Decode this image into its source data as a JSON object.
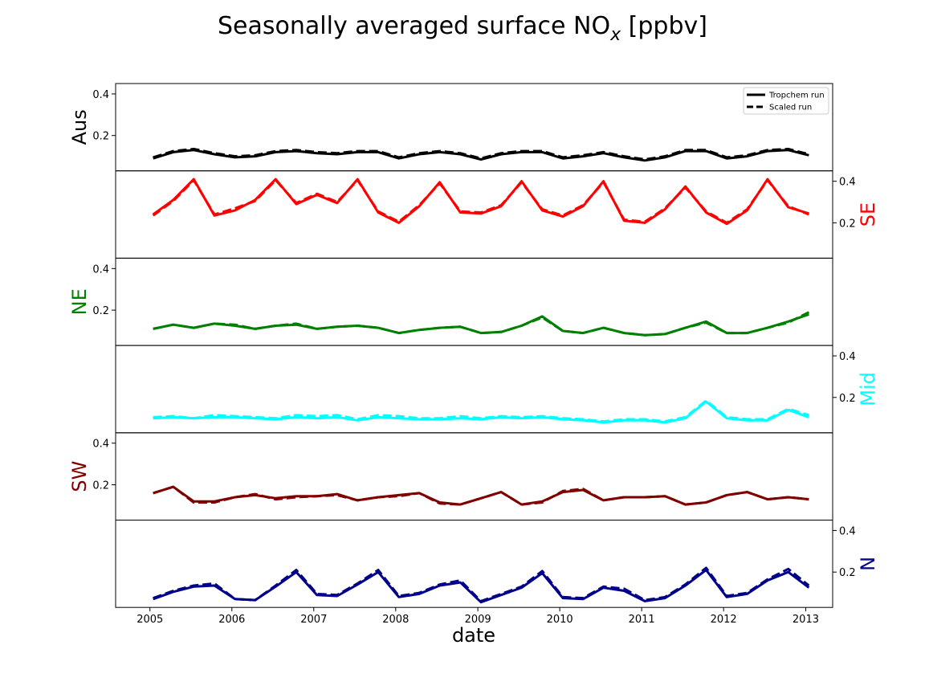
{
  "chart_data": {
    "type": "line",
    "title": "Seasonally averaged surface NO",
    "title_subscript": "x",
    "title_suffix": " [ppbv]",
    "xlabel": "date",
    "x": [
      "2005-01-15",
      "2005-04-15",
      "2005-07-15",
      "2005-10-15",
      "2006-01-15",
      "2006-04-15",
      "2006-07-15",
      "2006-10-15",
      "2007-01-15",
      "2007-04-15",
      "2007-07-15",
      "2007-10-15",
      "2008-01-15",
      "2008-04-15",
      "2008-07-15",
      "2008-10-15",
      "2009-01-15",
      "2009-04-15",
      "2009-07-15",
      "2009-10-15",
      "2010-01-15",
      "2010-04-15",
      "2010-07-15",
      "2010-10-15",
      "2011-01-15",
      "2011-04-15",
      "2011-07-15",
      "2011-10-15",
      "2012-01-15",
      "2012-04-15",
      "2012-07-15",
      "2012-10-15",
      "2013-01-15"
    ],
    "xticks": [
      "2005",
      "2006",
      "2007",
      "2008",
      "2009",
      "2010",
      "2011",
      "2012",
      "2013"
    ],
    "yticks": [
      "0.2",
      "0.4"
    ],
    "ylim": [
      0.03,
      0.45
    ],
    "grid": false,
    "legend": {
      "position": "top-right",
      "entries": [
        "Tropchem run",
        "Scaled run"
      ]
    },
    "panels": [
      {
        "label": "Aus",
        "color": "#000000",
        "axis_side": "left",
        "series": [
          {
            "name": "Tropchem run",
            "style": "solid",
            "values": [
              0.09,
              0.12,
              0.13,
              0.11,
              0.095,
              0.1,
              0.12,
              0.125,
              0.115,
              0.11,
              0.12,
              0.12,
              0.09,
              0.11,
              0.12,
              0.11,
              0.085,
              0.11,
              0.12,
              0.12,
              0.09,
              0.1,
              0.115,
              0.095,
              0.08,
              0.095,
              0.125,
              0.125,
              0.09,
              0.1,
              0.125,
              0.13,
              0.105
            ]
          },
          {
            "name": "Scaled run",
            "style": "dashed",
            "values": [
              0.095,
              0.125,
              0.135,
              0.115,
              0.1,
              0.105,
              0.125,
              0.13,
              0.12,
              0.115,
              0.125,
              0.125,
              0.095,
              0.115,
              0.125,
              0.115,
              0.09,
              0.115,
              0.125,
              0.125,
              0.095,
              0.105,
              0.12,
              0.1,
              0.085,
              0.1,
              0.13,
              0.13,
              0.095,
              0.105,
              0.13,
              0.135,
              0.11
            ]
          }
        ]
      },
      {
        "label": "SE",
        "color": "#ff0000",
        "axis_side": "right",
        "series": [
          {
            "name": "Tropchem run",
            "style": "solid",
            "values": [
              0.24,
              0.31,
              0.41,
              0.235,
              0.26,
              0.31,
              0.41,
              0.29,
              0.335,
              0.295,
              0.41,
              0.25,
              0.2,
              0.28,
              0.395,
              0.25,
              0.245,
              0.28,
              0.4,
              0.26,
              0.23,
              0.28,
              0.4,
              0.21,
              0.2,
              0.265,
              0.375,
              0.25,
              0.195,
              0.26,
              0.41,
              0.275,
              0.245
            ]
          },
          {
            "name": "Scaled run",
            "style": "dashed",
            "values": [
              0.235,
              0.305,
              0.405,
              0.24,
              0.27,
              0.305,
              0.405,
              0.295,
              0.34,
              0.3,
              0.405,
              0.255,
              0.205,
              0.285,
              0.39,
              0.255,
              0.25,
              0.285,
              0.395,
              0.265,
              0.235,
              0.285,
              0.395,
              0.215,
              0.205,
              0.27,
              0.37,
              0.255,
              0.2,
              0.265,
              0.405,
              0.28,
              0.24
            ]
          }
        ]
      },
      {
        "label": "NE",
        "color": "#008000",
        "axis_side": "left",
        "series": [
          {
            "name": "Tropchem run",
            "style": "solid",
            "values": [
              0.11,
              0.13,
              0.115,
              0.135,
              0.125,
              0.11,
              0.125,
              0.13,
              0.11,
              0.12,
              0.125,
              0.115,
              0.09,
              0.105,
              0.115,
              0.12,
              0.09,
              0.095,
              0.125,
              0.17,
              0.1,
              0.09,
              0.115,
              0.09,
              0.08,
              0.085,
              0.115,
              0.145,
              0.09,
              0.09,
              0.115,
              0.145,
              0.18
            ]
          },
          {
            "name": "Scaled run",
            "style": "dashed",
            "values": [
              0.11,
              0.13,
              0.115,
              0.135,
              0.13,
              0.11,
              0.125,
              0.135,
              0.11,
              0.12,
              0.125,
              0.115,
              0.09,
              0.105,
              0.115,
              0.12,
              0.09,
              0.095,
              0.125,
              0.165,
              0.1,
              0.09,
              0.115,
              0.09,
              0.08,
              0.085,
              0.115,
              0.14,
              0.09,
              0.09,
              0.115,
              0.14,
              0.19
            ]
          }
        ]
      },
      {
        "label": "Mid",
        "color": "#00ffff",
        "axis_side": "right",
        "series": [
          {
            "name": "Tropchem run",
            "style": "solid",
            "values": [
              0.1,
              0.105,
              0.1,
              0.105,
              0.105,
              0.1,
              0.095,
              0.105,
              0.1,
              0.105,
              0.09,
              0.105,
              0.1,
              0.095,
              0.095,
              0.1,
              0.095,
              0.105,
              0.1,
              0.105,
              0.095,
              0.09,
              0.08,
              0.09,
              0.09,
              0.08,
              0.1,
              0.18,
              0.1,
              0.09,
              0.09,
              0.14,
              0.105
            ]
          },
          {
            "name": "Scaled run",
            "style": "dashed",
            "values": [
              0.105,
              0.11,
              0.1,
              0.115,
              0.11,
              0.105,
              0.1,
              0.115,
              0.11,
              0.115,
              0.095,
              0.115,
              0.11,
              0.1,
              0.1,
              0.11,
              0.1,
              0.11,
              0.105,
              0.11,
              0.1,
              0.095,
              0.085,
              0.095,
              0.095,
              0.085,
              0.105,
              0.185,
              0.105,
              0.095,
              0.095,
              0.145,
              0.115
            ]
          }
        ]
      },
      {
        "label": "SW",
        "color": "#800000",
        "axis_side": "left",
        "series": [
          {
            "name": "Tropchem run",
            "style": "solid",
            "values": [
              0.16,
              0.19,
              0.12,
              0.12,
              0.14,
              0.15,
              0.135,
              0.145,
              0.145,
              0.155,
              0.125,
              0.14,
              0.15,
              0.16,
              0.115,
              0.105,
              0.135,
              0.165,
              0.105,
              0.12,
              0.165,
              0.175,
              0.125,
              0.14,
              0.14,
              0.145,
              0.105,
              0.115,
              0.15,
              0.165,
              0.13,
              0.14,
              0.13
            ]
          },
          {
            "name": "Scaled run",
            "style": "dashed",
            "values": [
              0.16,
              0.19,
              0.115,
              0.115,
              0.14,
              0.155,
              0.13,
              0.14,
              0.145,
              0.15,
              0.125,
              0.14,
              0.145,
              0.16,
              0.11,
              0.105,
              0.135,
              0.165,
              0.105,
              0.115,
              0.17,
              0.18,
              0.125,
              0.14,
              0.14,
              0.145,
              0.105,
              0.115,
              0.15,
              0.165,
              0.13,
              0.14,
              0.13
            ]
          }
        ]
      },
      {
        "label": "N",
        "color": "#00008b",
        "axis_side": "right",
        "series": [
          {
            "name": "Tropchem run",
            "style": "solid",
            "values": [
              0.07,
              0.105,
              0.13,
              0.135,
              0.07,
              0.065,
              0.13,
              0.2,
              0.09,
              0.085,
              0.14,
              0.2,
              0.08,
              0.095,
              0.135,
              0.15,
              0.055,
              0.09,
              0.125,
              0.195,
              0.075,
              0.07,
              0.125,
              0.11,
              0.06,
              0.075,
              0.135,
              0.21,
              0.08,
              0.095,
              0.16,
              0.2,
              0.125
            ]
          },
          {
            "name": "Scaled run",
            "style": "dashed",
            "values": [
              0.075,
              0.11,
              0.135,
              0.145,
              0.07,
              0.065,
              0.135,
              0.21,
              0.095,
              0.09,
              0.145,
              0.21,
              0.085,
              0.1,
              0.14,
              0.16,
              0.06,
              0.095,
              0.13,
              0.205,
              0.08,
              0.075,
              0.13,
              0.12,
              0.065,
              0.08,
              0.14,
              0.22,
              0.085,
              0.1,
              0.165,
              0.215,
              0.135
            ]
          }
        ]
      }
    ]
  }
}
